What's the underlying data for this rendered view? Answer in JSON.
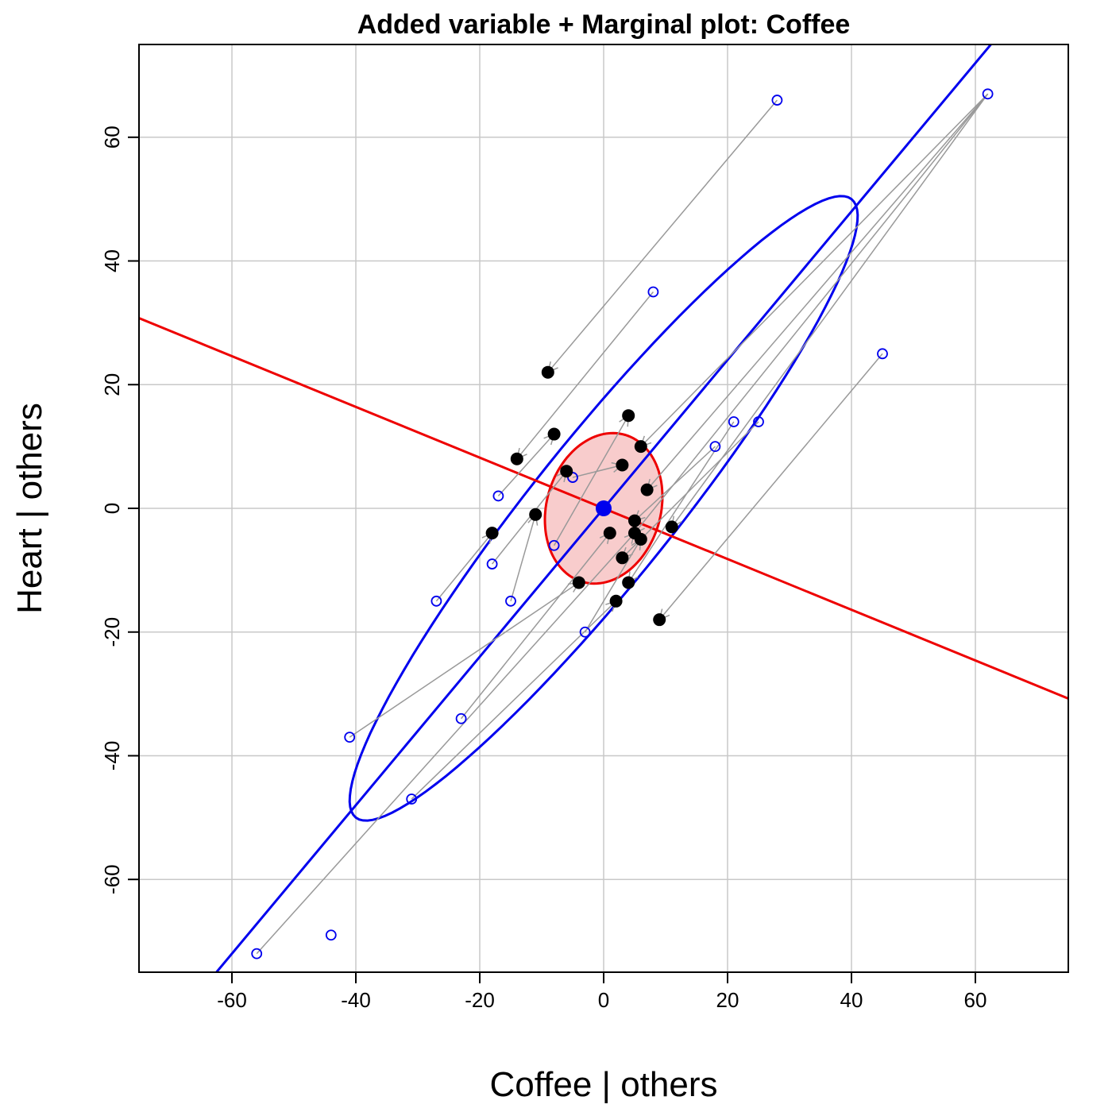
{
  "chart_data": {
    "type": "scatter",
    "title": "Added variable + Marginal plot: Coffee",
    "xlabel": "Coffee | others",
    "ylabel": "Heart  | others",
    "xlim": [
      -75,
      75
    ],
    "ylim": [
      -75,
      75
    ],
    "xticks": [
      -60,
      -40,
      -20,
      0,
      20,
      40,
      60
    ],
    "yticks": [
      -60,
      -40,
      -20,
      0,
      20,
      40,
      60
    ],
    "xtick_labels": [
      "-60",
      "-40",
      "-20",
      "0",
      "20",
      "40",
      "60"
    ],
    "ytick_labels": [
      "-60",
      "-40",
      "-20",
      "0",
      "20",
      "40",
      "60"
    ],
    "grid": true,
    "colors": {
      "marginal": "#0000ee",
      "added_variable": "#000000",
      "added_variable_line": "#ee0000",
      "added_variable_fill": "#f8cccc",
      "arrow": "#999999",
      "grid": "#c8c8c8"
    },
    "series": [
      {
        "name": "Marginal (open blue circles)",
        "points": [
          [
            28,
            66
          ],
          [
            62,
            67
          ],
          [
            8,
            35
          ],
          [
            45,
            25
          ],
          [
            21,
            14
          ],
          [
            25,
            14
          ],
          [
            18,
            10
          ],
          [
            -17,
            2
          ],
          [
            -5,
            5
          ],
          [
            -8,
            -6
          ],
          [
            -18,
            -9
          ],
          [
            -27,
            -15
          ],
          [
            -15,
            -15
          ],
          [
            -3,
            -20
          ],
          [
            -23,
            -34
          ],
          [
            -41,
            -37
          ],
          [
            -31,
            -47
          ],
          [
            -44,
            -69
          ],
          [
            -56,
            -72
          ]
        ]
      },
      {
        "name": "Added-variable (filled black points)",
        "points": [
          [
            -9,
            22
          ],
          [
            -8,
            12
          ],
          [
            4,
            15
          ],
          [
            6,
            10
          ],
          [
            -14,
            8
          ],
          [
            3,
            7
          ],
          [
            -6,
            6
          ],
          [
            7,
            3
          ],
          [
            -11,
            -1
          ],
          [
            5,
            -2
          ],
          [
            -18,
            -4
          ],
          [
            1,
            -4
          ],
          [
            5,
            -4
          ],
          [
            6,
            -5
          ],
          [
            11,
            -3
          ],
          [
            3,
            -8
          ],
          [
            -4,
            -12
          ],
          [
            4,
            -12
          ],
          [
            2,
            -15
          ],
          [
            9,
            -18
          ]
        ]
      }
    ],
    "arrows": [
      {
        "from": [
          28,
          66
        ],
        "to": [
          -9,
          22
        ]
      },
      {
        "from": [
          62,
          67
        ],
        "to": [
          6,
          10
        ]
      },
      {
        "from": [
          62,
          67
        ],
        "to": [
          7,
          3
        ]
      },
      {
        "from": [
          62,
          67
        ],
        "to": [
          11,
          -3
        ]
      },
      {
        "from": [
          62,
          67
        ],
        "to": [
          5,
          -4
        ]
      },
      {
        "from": [
          8,
          35
        ],
        "to": [
          -14,
          8
        ]
      },
      {
        "from": [
          45,
          25
        ],
        "to": [
          9,
          -18
        ]
      },
      {
        "from": [
          21,
          14
        ],
        "to": [
          4,
          -12
        ]
      },
      {
        "from": [
          25,
          14
        ],
        "to": [
          3,
          -8
        ]
      },
      {
        "from": [
          18,
          10
        ],
        "to": [
          5,
          -2
        ]
      },
      {
        "from": [
          -17,
          2
        ],
        "to": [
          -8,
          12
        ]
      },
      {
        "from": [
          -5,
          5
        ],
        "to": [
          3,
          7
        ]
      },
      {
        "from": [
          -8,
          -6
        ],
        "to": [
          4,
          15
        ]
      },
      {
        "from": [
          -18,
          -9
        ],
        "to": [
          -6,
          6
        ]
      },
      {
        "from": [
          -27,
          -15
        ],
        "to": [
          -18,
          -4
        ]
      },
      {
        "from": [
          -15,
          -15
        ],
        "to": [
          -11,
          -1
        ]
      },
      {
        "from": [
          -3,
          -20
        ],
        "to": [
          6,
          -5
        ]
      },
      {
        "from": [
          -23,
          -34
        ],
        "to": [
          1,
          -4
        ]
      },
      {
        "from": [
          -41,
          -37
        ],
        "to": [
          -4,
          -12
        ]
      },
      {
        "from": [
          -31,
          -47
        ],
        "to": [
          2,
          -15
        ]
      },
      {
        "from": [
          -56,
          -72
        ],
        "to": [
          5,
          -4
        ]
      }
    ],
    "marginal_regression_line": {
      "slope": 1.2,
      "intercept": 0
    },
    "added_variable_regression_line": {
      "slope": -0.41,
      "intercept": 0
    },
    "center_point": [
      0,
      0
    ],
    "marginal_ellipse": {
      "center": [
        0,
        0
      ],
      "major_axis_endpoint": [
        40,
        50
      ],
      "minor_axis_endpoint": [
        -9,
        7
      ]
    },
    "added_variable_ellipse": {
      "center": [
        0,
        0
      ],
      "major_axis_endpoint": [
        3,
        12
      ],
      "minor_axis_endpoint": [
        9,
        -2
      ]
    }
  }
}
